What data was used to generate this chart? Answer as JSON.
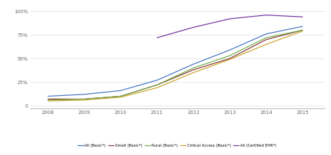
{
  "years": [
    2008,
    2009,
    2010,
    2011,
    2012,
    2013,
    2014,
    2015
  ],
  "series": {
    "All (Basic*)": [
      0.1,
      0.12,
      0.16,
      0.27,
      0.44,
      0.59,
      0.76,
      0.84
    ],
    "Small (Basic*)": [
      0.07,
      0.07,
      0.1,
      0.22,
      0.38,
      0.5,
      0.7,
      0.8
    ],
    "Rural (Basic*)": [
      0.06,
      0.07,
      0.1,
      0.22,
      0.4,
      0.53,
      0.72,
      0.8
    ],
    "Critical Access (Basic*)": [
      0.05,
      0.06,
      0.09,
      0.19,
      0.35,
      0.49,
      0.65,
      0.79
    ],
    "All (Certified EHR*)": [
      null,
      null,
      null,
      0.72,
      0.83,
      0.92,
      0.96,
      0.94
    ]
  },
  "colors": {
    "All (Basic*)": "#4472C4",
    "Small (Basic*)": "#833232",
    "Rural (Basic*)": "#70AD47",
    "Critical Access (Basic*)": "#C9A227",
    "All (Certified EHR*)": "#7030A0"
  },
  "yticks": [
    0.0,
    0.25,
    0.5,
    0.75,
    1.0
  ],
  "ytick_labels": [
    "0",
    "25%",
    "50%",
    "75%",
    "100%"
  ],
  "ylim": [
    -0.03,
    1.07
  ],
  "xlim": [
    2007.5,
    2015.6
  ],
  "background_color": "#ffffff",
  "grid_color": "#dddddd",
  "legend_labels": [
    "All (Basic*)",
    "Small (Basic*)",
    "Rural (Basic*)",
    "Critical Access (Basic*)",
    "All (Certified EHR*)"
  ]
}
